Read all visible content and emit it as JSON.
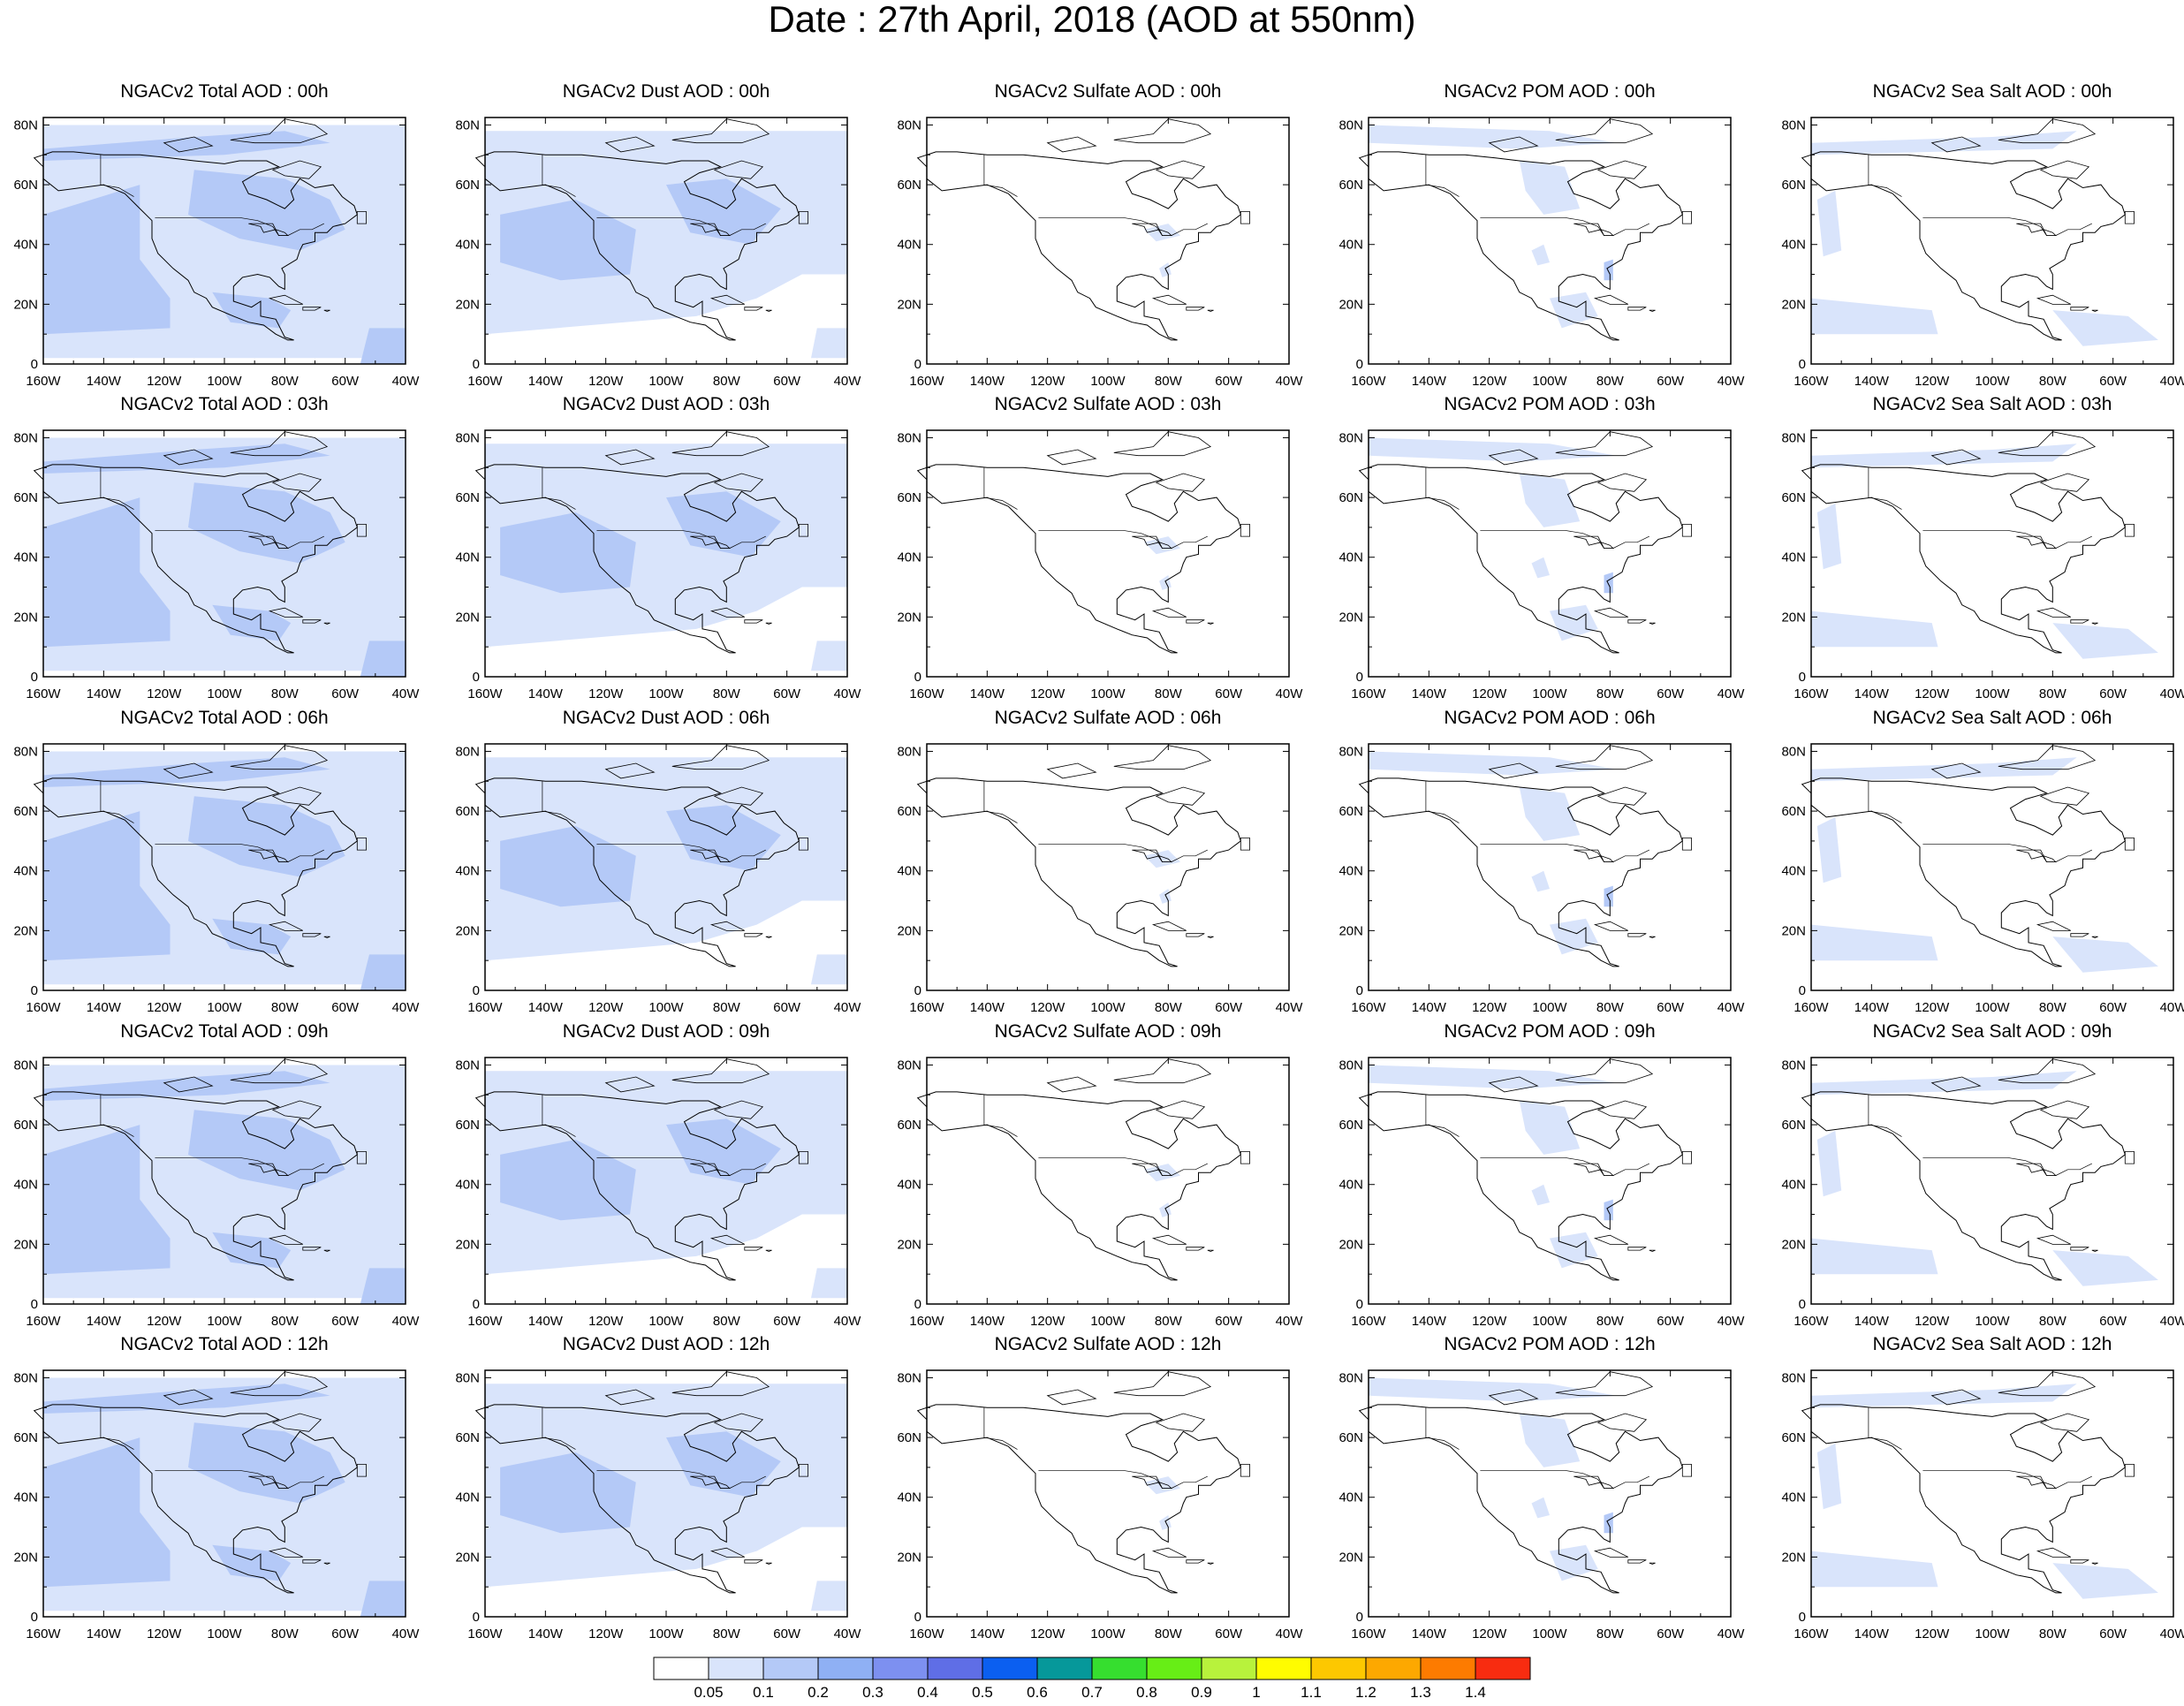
{
  "title": "Date : 27th April, 2018 (AOD at 550nm)",
  "map": {
    "lat_labels": [
      "0",
      "20N",
      "40N",
      "60N",
      "80N"
    ],
    "lon_labels": [
      "160W",
      "140W",
      "120W",
      "100W",
      "80W",
      "60W",
      "40W"
    ]
  },
  "rows": [
    {
      "time": "00h",
      "panels": [
        {
          "title": "NGACv2 Total AOD : 00h",
          "field": "total"
        },
        {
          "title": "NGACv2 Dust AOD : 00h",
          "field": "dust"
        },
        {
          "title": "NGACv2 Sulfate AOD : 00h",
          "field": "sulfate"
        },
        {
          "title": "NGACv2 POM AOD : 00h",
          "field": "pom"
        },
        {
          "title": "NGACv2 Sea Salt AOD : 00h",
          "field": "seasalt"
        }
      ]
    },
    {
      "time": "03h",
      "panels": [
        {
          "title": "NGACv2 Total AOD : 03h",
          "field": "total"
        },
        {
          "title": "NGACv2 Dust AOD : 03h",
          "field": "dust"
        },
        {
          "title": "NGACv2 Sulfate AOD : 03h",
          "field": "sulfate"
        },
        {
          "title": "NGACv2 POM AOD : 03h",
          "field": "pom"
        },
        {
          "title": "NGACv2 Sea Salt AOD : 03h",
          "field": "seasalt"
        }
      ]
    },
    {
      "time": "06h",
      "panels": [
        {
          "title": "NGACv2 Total AOD : 06h",
          "field": "total"
        },
        {
          "title": "NGACv2 Dust AOD : 06h",
          "field": "dust"
        },
        {
          "title": "NGACv2 Sulfate AOD : 06h",
          "field": "sulfate"
        },
        {
          "title": "NGACv2 POM AOD : 06h",
          "field": "pom"
        },
        {
          "title": "NGACv2 Sea Salt AOD : 06h",
          "field": "seasalt"
        }
      ]
    },
    {
      "time": "09h",
      "panels": [
        {
          "title": "NGACv2 Total AOD : 09h",
          "field": "total"
        },
        {
          "title": "NGACv2 Dust AOD : 09h",
          "field": "dust"
        },
        {
          "title": "NGACv2 Sulfate AOD : 09h",
          "field": "sulfate"
        },
        {
          "title": "NGACv2 POM AOD : 09h",
          "field": "pom"
        },
        {
          "title": "NGACv2 Sea Salt  AOD : 09h",
          "field": "seasalt"
        }
      ]
    },
    {
      "time": "12h",
      "panels": [
        {
          "title": "NGACv2 Total AOD  : 12h",
          "field": "total"
        },
        {
          "title": "NGACv2 Dust AOD : 12h",
          "field": "dust"
        },
        {
          "title": "NGACv2 Sulfate AOD : 12h",
          "field": "sulfate"
        },
        {
          "title": "NGACv2 POM  AOD : 12h",
          "field": "pom"
        },
        {
          "title": "NGACv2 Sea Salt  AOD : 12h",
          "field": "seasalt"
        }
      ]
    }
  ],
  "colorbar": {
    "labels": [
      "0.05",
      "0.1",
      "0.2",
      "0.3",
      "0.4",
      "0.5",
      "0.6",
      "0.7",
      "0.8",
      "0.9",
      "1",
      "1.1",
      "1.2",
      "1.3",
      "1.4"
    ],
    "colors": [
      "#ffffff",
      "#d9e4fb",
      "#b4c9f7",
      "#8fb0f4",
      "#7d90f0",
      "#5f6ee6",
      "#0b5ff0",
      "#06989a",
      "#36de2f",
      "#67ee16",
      "#b8f23c",
      "#fffc00",
      "#fdc800",
      "#fda800",
      "#fd7b00",
      "#f82c10"
    ]
  },
  "palette": {
    "light": "#d9e4fb",
    "medium": "#b4c9f7",
    "dark": "#8fb0f4",
    "coast": "#000000"
  }
}
